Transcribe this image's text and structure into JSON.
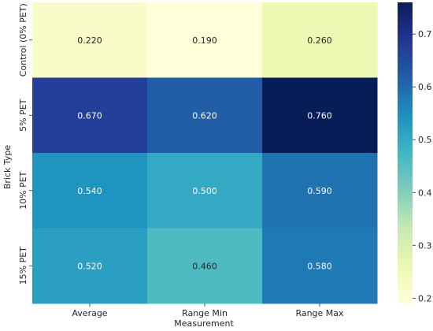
{
  "chart_data": {
    "type": "heatmap",
    "title": "",
    "xlabel": "Measurement",
    "ylabel": "Brick Type",
    "x_categories": [
      "Average",
      "Range Min",
      "Range Max"
    ],
    "y_categories": [
      "Control (0% PET)",
      "5% PET",
      "10% PET",
      "15% PET"
    ],
    "values": [
      [
        0.22,
        0.19,
        0.26
      ],
      [
        0.67,
        0.62,
        0.76
      ],
      [
        0.54,
        0.5,
        0.59
      ],
      [
        0.52,
        0.46,
        0.58
      ]
    ],
    "value_labels": [
      [
        "0.220",
        "0.190",
        "0.260"
      ],
      [
        "0.670",
        "0.620",
        "0.760"
      ],
      [
        "0.540",
        "0.500",
        "0.590"
      ],
      [
        "0.520",
        "0.460",
        "0.580"
      ]
    ],
    "colormap": "YlGnBu",
    "colorbar": {
      "range": [
        0.19,
        0.76
      ],
      "ticks": [
        0.2,
        0.3,
        0.4,
        0.5,
        0.6,
        0.7
      ],
      "tick_labels": [
        "0.2",
        "0.3",
        "0.4",
        "0.5",
        "0.6",
        "0.7"
      ]
    },
    "colors": {
      "light_text": "#ffffff",
      "dark_text": "#262626"
    }
  }
}
